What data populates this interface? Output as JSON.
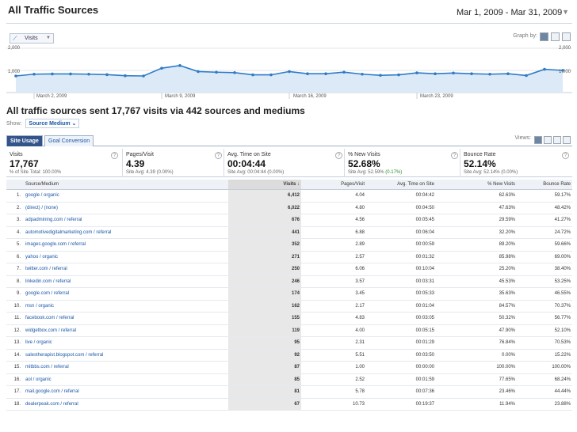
{
  "header": {
    "title": "All Traffic Sources",
    "date_range": "Mar 1, 2009 - Mar 31, 2009"
  },
  "chart_toolbar": {
    "metric_label": "Visits",
    "graph_by_label": "Graph by:"
  },
  "chart_data": {
    "type": "area",
    "title": "",
    "xlabel": "",
    "ylabel": "",
    "y_ticks_left": [
      "2,000",
      "1,000"
    ],
    "y_ticks_right": [
      "2,000",
      "1,000"
    ],
    "x_tick_labels": [
      "March 2, 2009",
      "March 9, 2009",
      "March 16, 2009",
      "March 23, 2009"
    ],
    "ylim": [
      0,
      2000
    ],
    "grid": true,
    "series": [
      {
        "values": [
          750,
          830,
          840,
          840,
          830,
          810,
          760,
          750,
          1100,
          1220,
          950,
          920,
          900,
          800,
          800,
          950,
          850,
          850,
          920,
          830,
          780,
          800,
          890,
          850,
          880,
          850,
          830,
          850,
          770,
          1050,
          1000
        ]
      }
    ]
  },
  "summary": {
    "title": "All traffic sources sent 17,767 visits via 442 sources and mediums",
    "show_label": "Show:",
    "show_value": "Source Medium"
  },
  "tabs": {
    "site_usage": "Site Usage",
    "goal_conversion": "Goal Conversion",
    "views_label": "Views:"
  },
  "metrics": [
    {
      "name": "Visits",
      "value": "17,767",
      "sub": "% of Site Total: 100.00%",
      "sub_extra": ""
    },
    {
      "name": "Pages/Visit",
      "value": "4.39",
      "sub": "Site Avg: 4.39 (0.00%)",
      "sub_extra": ""
    },
    {
      "name": "Avg. Time on Site",
      "value": "00:04:44",
      "sub": "Site Avg: 00:04:44 (0.00%)",
      "sub_extra": ""
    },
    {
      "name": "% New Visits",
      "value": "52.68%",
      "sub": "Site Avg: 52.59%",
      "sub_extra": "(0.17%)"
    },
    {
      "name": "Bounce Rate",
      "value": "52.14%",
      "sub": "Site Avg: 52.14% (0.00%)",
      "sub_extra": ""
    }
  ],
  "table": {
    "headers": {
      "source": "Source/Medium",
      "visits": "Visits ↓",
      "ppv": "Pages/Visit",
      "time": "Avg. Time on Site",
      "new": "% New Visits",
      "bounce": "Bounce Rate"
    },
    "rows": [
      {
        "idx": "1.",
        "src": "google / organic",
        "visits": "6,412",
        "ppv": "4.04",
        "time": "00:04:42",
        "new": "62.63%",
        "bounce": "59.17%"
      },
      {
        "idx": "2.",
        "src": "(direct) / (none)",
        "visits": "6,022",
        "ppv": "4.80",
        "time": "00:04:50",
        "new": "47.63%",
        "bounce": "48.42%"
      },
      {
        "idx": "3.",
        "src": "adpadmining.com / referral",
        "visits": "676",
        "ppv": "4.56",
        "time": "00:05:45",
        "new": "29.59%",
        "bounce": "41.27%"
      },
      {
        "idx": "4.",
        "src": "automotivedigitalmarketing.com / referral",
        "visits": "441",
        "ppv": "6.88",
        "time": "00:06:04",
        "new": "32.20%",
        "bounce": "24.72%"
      },
      {
        "idx": "5.",
        "src": "images.google.com / referral",
        "visits": "352",
        "ppv": "2.89",
        "time": "00:00:59",
        "new": "89.20%",
        "bounce": "59.66%"
      },
      {
        "idx": "6.",
        "src": "yahoo / organic",
        "visits": "271",
        "ppv": "2.57",
        "time": "00:01:32",
        "new": "85.98%",
        "bounce": "69.00%"
      },
      {
        "idx": "7.",
        "src": "twitter.com / referral",
        "visits": "250",
        "ppv": "6.06",
        "time": "00:10:04",
        "new": "25.20%",
        "bounce": "38.40%"
      },
      {
        "idx": "8.",
        "src": "linkedin.com / referral",
        "visits": "246",
        "ppv": "3.57",
        "time": "00:03:31",
        "new": "45.53%",
        "bounce": "53.25%"
      },
      {
        "idx": "9.",
        "src": "google.com / referral",
        "visits": "174",
        "ppv": "3.45",
        "time": "00:05:33",
        "new": "35.63%",
        "bounce": "46.55%"
      },
      {
        "idx": "10.",
        "src": "msn / organic",
        "visits": "162",
        "ppv": "2.17",
        "time": "00:01:04",
        "new": "84.57%",
        "bounce": "70.37%"
      },
      {
        "idx": "11.",
        "src": "facebook.com / referral",
        "visits": "155",
        "ppv": "4.83",
        "time": "00:03:05",
        "new": "50.32%",
        "bounce": "56.77%"
      },
      {
        "idx": "12.",
        "src": "widgetbox.com / referral",
        "visits": "119",
        "ppv": "4.00",
        "time": "00:05:15",
        "new": "47.90%",
        "bounce": "52.10%"
      },
      {
        "idx": "13.",
        "src": "live / organic",
        "visits": "95",
        "ppv": "2.31",
        "time": "00:01:29",
        "new": "76.84%",
        "bounce": "70.53%"
      },
      {
        "idx": "14.",
        "src": "salestherapist.blogspot.com / referral",
        "visits": "92",
        "ppv": "5.51",
        "time": "00:03:50",
        "new": "0.00%",
        "bounce": "15.22%"
      },
      {
        "idx": "15.",
        "src": "mitbbs.com / referral",
        "visits": "87",
        "ppv": "1.00",
        "time": "00:00:00",
        "new": "100.00%",
        "bounce": "100.00%"
      },
      {
        "idx": "16.",
        "src": "aol / organic",
        "visits": "85",
        "ppv": "2.52",
        "time": "00:01:59",
        "new": "77.65%",
        "bounce": "68.24%"
      },
      {
        "idx": "17.",
        "src": "mail.google.com / referral",
        "visits": "81",
        "ppv": "5.78",
        "time": "00:07:36",
        "new": "23.46%",
        "bounce": "44.44%"
      },
      {
        "idx": "18.",
        "src": "dealerpeak.com / referral",
        "visits": "67",
        "ppv": "10.73",
        "time": "00:19:37",
        "new": "11.94%",
        "bounce": "23.88%"
      }
    ]
  },
  "icons": {
    "line_chart": "line-chart-icon",
    "help": "help-icon",
    "chevron": "chevron-down-icon"
  },
  "colors": {
    "series_line": "#2e7bc6",
    "series_fill": "#dceaf7",
    "tab_active": "#33538b",
    "link": "#1a56a8",
    "positive": "#2a8a2a"
  }
}
